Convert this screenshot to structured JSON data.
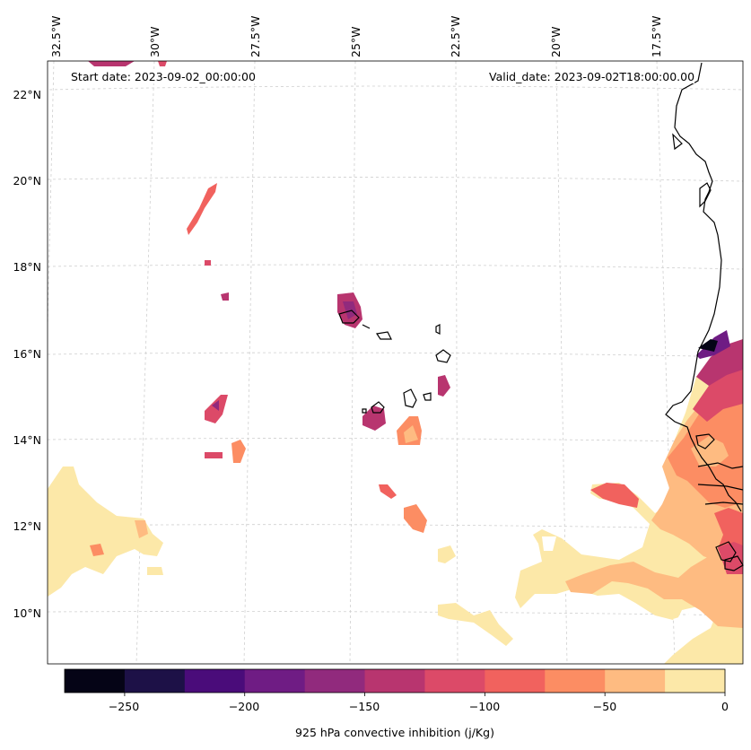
{
  "annotations": {
    "start_date": "Start date: 2023-09-02_00:00:00",
    "valid_date": "Valid_date: 2023-09-02T18:00:00.00"
  },
  "longitude_labels": [
    "32.5°W",
    "30°W",
    "27.5°W",
    "25°W",
    "22.5°W",
    "20°W",
    "17.5°W"
  ],
  "latitude_labels": [
    "22°N",
    "20°N",
    "18°N",
    "16°N",
    "14°N",
    "12°N",
    "10°N"
  ],
  "colorbar": {
    "title": "925 hPa convective inhibition (j/Kg)",
    "tick_labels": [
      "−250",
      "−200",
      "−150",
      "−100",
      "−50",
      "0"
    ],
    "bins": [
      {
        "min": -275,
        "max": -250,
        "color": "#050416"
      },
      {
        "min": -250,
        "max": -225,
        "color": "#1d1147"
      },
      {
        "min": -225,
        "max": -200,
        "color": "#4a0c7a"
      },
      {
        "min": -200,
        "max": -175,
        "color": "#6f1c84"
      },
      {
        "min": -175,
        "max": -150,
        "color": "#912a7d"
      },
      {
        "min": -150,
        "max": -125,
        "color": "#b8356f"
      },
      {
        "min": -125,
        "max": -100,
        "color": "#dc4a68"
      },
      {
        "min": -100,
        "max": -75,
        "color": "#f1625e"
      },
      {
        "min": -75,
        "max": -50,
        "color": "#fc8d63"
      },
      {
        "min": -50,
        "max": -25,
        "color": "#febb81"
      },
      {
        "min": -25,
        "max": 0,
        "color": "#fce8a8"
      }
    ]
  }
}
